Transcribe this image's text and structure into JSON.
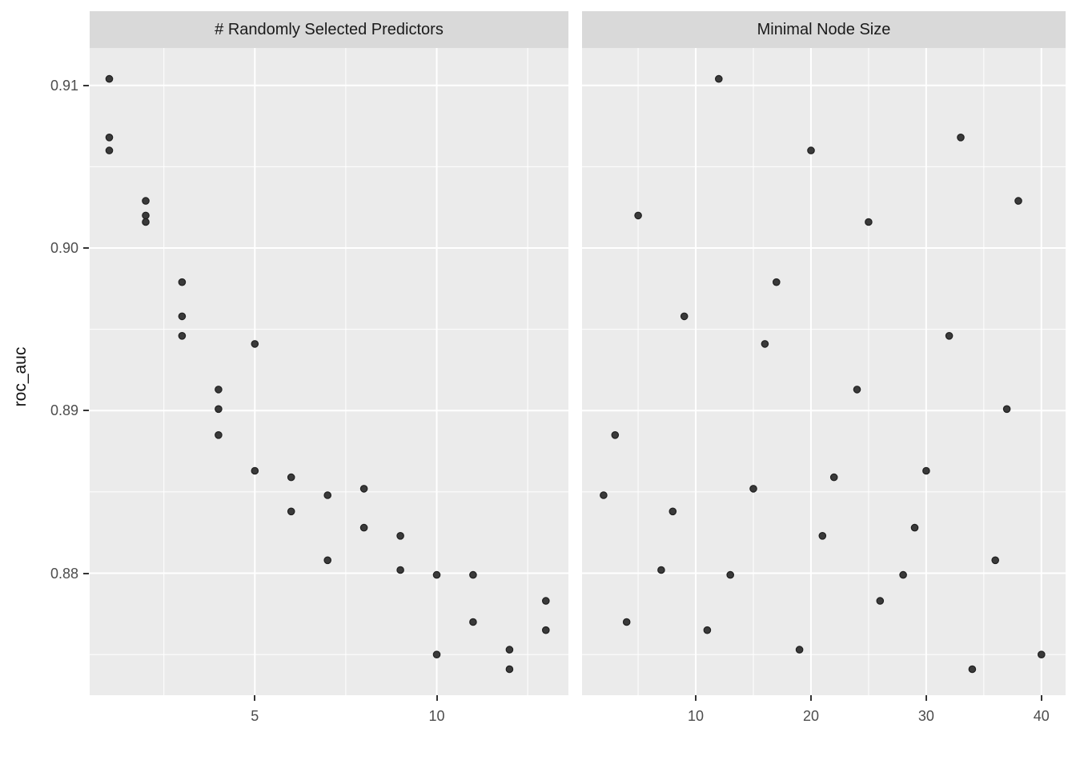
{
  "colors": {
    "background": "#FFFFFF",
    "panel_bg": "#EBEBEB",
    "strip_bg": "#D9D9D9",
    "grid": "#FFFFFF",
    "point": "#3A3A3A",
    "point_edge": "#1F1F1F",
    "axis_text": "#4D4D4D",
    "tick_mark": "#333333",
    "title_text": "#1A1A1A"
  },
  "chart_data": {
    "type": "scatter",
    "title": "",
    "ylabel": "roc_auc",
    "ylim": [
      0.8725,
      0.9123
    ],
    "y_ticks": [
      0.88,
      0.89,
      0.9,
      0.91
    ],
    "y_tick_labels": [
      "0.88",
      "0.89",
      "0.90",
      "0.91"
    ],
    "y_minor": [
      0.875,
      0.885,
      0.895,
      0.905
    ],
    "grid": "on",
    "legend": "none",
    "facets": [
      {
        "title": "# Randomly Selected Predictors",
        "xlim": [
          0.46,
          13.62
        ],
        "x_major": [
          5,
          10
        ],
        "x_tick_labels": [
          "5",
          "10"
        ],
        "x_minor": [
          2.5,
          7.5,
          12.5
        ],
        "points": [
          [
            1,
            0.9104
          ],
          [
            1,
            0.9068
          ],
          [
            1,
            0.906
          ],
          [
            2,
            0.9029
          ],
          [
            2,
            0.902
          ],
          [
            2,
            0.9016
          ],
          [
            3,
            0.8979
          ],
          [
            3,
            0.8958
          ],
          [
            3,
            0.8946
          ],
          [
            4,
            0.8913
          ],
          [
            4,
            0.8901
          ],
          [
            4,
            0.8885
          ],
          [
            5,
            0.8941
          ],
          [
            5,
            0.8863
          ],
          [
            6,
            0.8859
          ],
          [
            6,
            0.8838
          ],
          [
            7,
            0.8848
          ],
          [
            7,
            0.8808
          ],
          [
            8,
            0.8852
          ],
          [
            8,
            0.8828
          ],
          [
            9,
            0.8823
          ],
          [
            9,
            0.8802
          ],
          [
            10,
            0.8799
          ],
          [
            10,
            0.875
          ],
          [
            11,
            0.8799
          ],
          [
            11,
            0.877
          ],
          [
            12,
            0.8753
          ],
          [
            12,
            0.8741
          ],
          [
            13,
            0.8783
          ],
          [
            13,
            0.8765
          ]
        ]
      },
      {
        "title": "Minimal Node Size",
        "xlim": [
          0.13,
          42.1
        ],
        "x_major": [
          10,
          20,
          30,
          40
        ],
        "x_tick_labels": [
          "10",
          "20",
          "30",
          "40"
        ],
        "x_minor": [
          5,
          15,
          25,
          35
        ],
        "points": [
          [
            12,
            0.9104
          ],
          [
            33,
            0.9068
          ],
          [
            20,
            0.906
          ],
          [
            38,
            0.9029
          ],
          [
            5,
            0.902
          ],
          [
            25,
            0.9016
          ],
          [
            17,
            0.8979
          ],
          [
            9,
            0.8958
          ],
          [
            32,
            0.8946
          ],
          [
            24,
            0.8913
          ],
          [
            37,
            0.8901
          ],
          [
            3,
            0.8885
          ],
          [
            16,
            0.8941
          ],
          [
            30,
            0.8863
          ],
          [
            22,
            0.8859
          ],
          [
            8,
            0.8838
          ],
          [
            2,
            0.8848
          ],
          [
            36,
            0.8808
          ],
          [
            15,
            0.8852
          ],
          [
            29,
            0.8828
          ],
          [
            21,
            0.8823
          ],
          [
            7,
            0.8802
          ],
          [
            13,
            0.8799
          ],
          [
            40,
            0.875
          ],
          [
            28,
            0.8799
          ],
          [
            4,
            0.877
          ],
          [
            19,
            0.8753
          ],
          [
            34,
            0.8741
          ],
          [
            26,
            0.8783
          ],
          [
            11,
            0.8765
          ]
        ]
      }
    ]
  }
}
